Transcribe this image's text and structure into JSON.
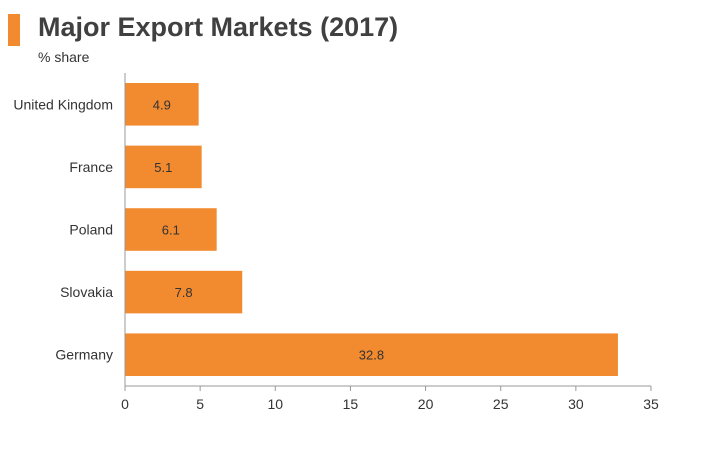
{
  "colors": {
    "accent": "#F28A30",
    "bar": "#F28A30",
    "axis": "#999999",
    "text": "#333333"
  },
  "chart_data": {
    "type": "bar",
    "orientation": "horizontal",
    "title": "Major Export Markets (2017)",
    "subtitle": "% share",
    "categories": [
      "United Kingdom",
      "France",
      "Poland",
      "Slovakia",
      "Germany"
    ],
    "values": [
      4.9,
      5.1,
      6.1,
      7.8,
      32.8
    ],
    "value_labels": [
      "4.9",
      "5.1",
      "6.1",
      "7.8",
      "32.8"
    ],
    "xlim": [
      0,
      35
    ],
    "xticks": [
      0,
      5,
      10,
      15,
      20,
      25,
      30,
      35
    ],
    "grid": false,
    "legend": "none"
  }
}
